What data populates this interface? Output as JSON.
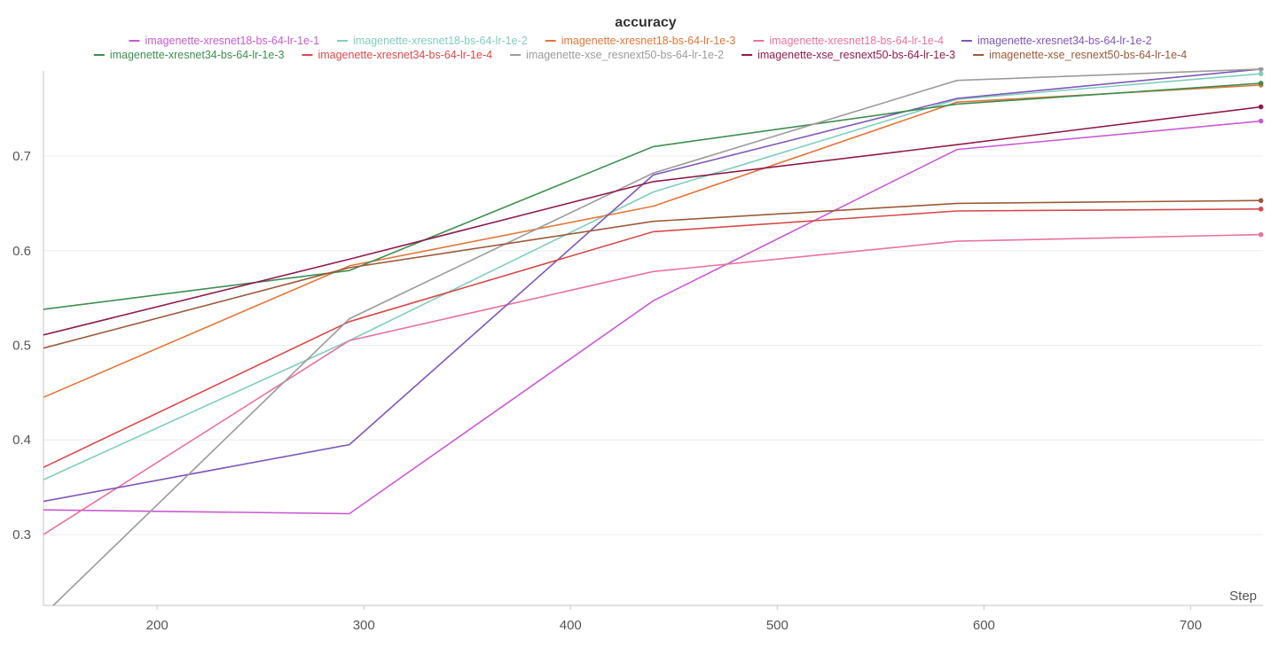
{
  "chart_data": {
    "type": "line",
    "title": "accuracy",
    "xlabel": "Step",
    "ylabel": "",
    "xlim": [
      145,
      735
    ],
    "ylim": [
      0.225,
      0.79
    ],
    "xticks": [
      200,
      300,
      400,
      500,
      600,
      700
    ],
    "xtick_labels": [
      "200",
      "300",
      "400",
      "500",
      "600",
      "700"
    ],
    "yticks": [
      0.3,
      0.4,
      0.5,
      0.6,
      0.7
    ],
    "ytick_labels": [
      "0.3",
      "0.4",
      "0.5",
      "0.6",
      "0.7"
    ],
    "grid": true,
    "legend_position": "top",
    "series": [
      {
        "name": "imagenette-xresnet18-bs-64-lr-1e-1",
        "color": "#c75bd0",
        "x": [
          145,
          293,
          440,
          587,
          734
        ],
        "y": [
          0.326,
          0.322,
          0.547,
          0.707,
          0.737
        ]
      },
      {
        "name": "imagenette-xresnet18-bs-64-lr-1e-2",
        "color": "#7fcdbb",
        "x": [
          145,
          293,
          440,
          587,
          734
        ],
        "y": [
          0.358,
          0.505,
          0.662,
          0.76,
          0.787
        ]
      },
      {
        "name": "imagenette-xresnet18-bs-64-lr-1e-3",
        "color": "#e0763a",
        "x": [
          145,
          293,
          440,
          587,
          734
        ],
        "y": [
          0.445,
          0.584,
          0.647,
          0.757,
          0.775
        ]
      },
      {
        "name": "imagenette-xresnet18-bs-64-lr-1e-4",
        "color": "#e7739c",
        "x": [
          145,
          293,
          440,
          587,
          734
        ],
        "y": [
          0.3,
          0.505,
          0.578,
          0.61,
          0.617
        ]
      },
      {
        "name": "imagenette-xresnet34-bs-64-lr-1e-2",
        "color": "#7e57b7",
        "x": [
          145,
          293,
          440,
          587,
          734
        ],
        "y": [
          0.335,
          0.395,
          0.68,
          0.761,
          0.792
        ]
      },
      {
        "name": "imagenette-xresnet34-bs-64-lr-1e-3",
        "color": "#3e8e4f",
        "x": [
          145,
          293,
          440,
          587,
          734
        ],
        "y": [
          0.538,
          0.579,
          0.71,
          0.755,
          0.777
        ]
      },
      {
        "name": "imagenette-xresnet34-bs-64-lr-1e-4",
        "color": "#d44a4a",
        "x": [
          145,
          293,
          440,
          587,
          734
        ],
        "y": [
          0.371,
          0.525,
          0.62,
          0.642,
          0.644
        ]
      },
      {
        "name": "imagenette-xse_resnext50-bs-64-lr-1e-2",
        "color": "#9b9b9b",
        "x": [
          145,
          293,
          440,
          587,
          734
        ],
        "y": [
          0.215,
          0.528,
          0.682,
          0.78,
          0.792
        ]
      },
      {
        "name": "imagenette-xse_resnext50-bs-64-lr-1e-3",
        "color": "#8e1b4b",
        "x": [
          145,
          293,
          440,
          587,
          734
        ],
        "y": [
          0.511,
          0.591,
          0.673,
          0.712,
          0.752
        ]
      },
      {
        "name": "imagenette-xse_resnext50-bs-64-lr-1e-4",
        "color": "#9a5a3a",
        "x": [
          145,
          293,
          440,
          587,
          734
        ],
        "y": [
          0.497,
          0.582,
          0.631,
          0.65,
          0.653
        ]
      }
    ]
  }
}
